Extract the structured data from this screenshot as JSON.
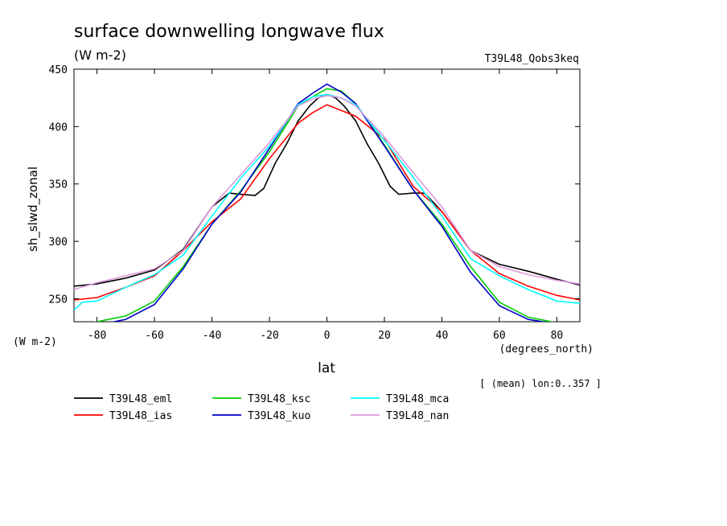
{
  "chart_data": {
    "type": "line",
    "title": "surface downwelling longwave flux",
    "units_label": "(W m-2)",
    "run_label": "T39L48_Qobs3keq",
    "ylabel": "sh_slwd_zonal",
    "y_units_label": "(W m-2)",
    "xlabel": "lat",
    "x_units_label": "(degrees_north)",
    "footnote": "[ (mean) lon:0..357 ]",
    "xlim": [
      -88,
      88
    ],
    "ylim": [
      230,
      450
    ],
    "x_ticks": [
      -80,
      -60,
      -40,
      -20,
      0,
      20,
      40,
      60,
      80
    ],
    "y_ticks": [
      250,
      300,
      350,
      400,
      450
    ],
    "grid": false,
    "legend_position": "bottom",
    "series": [
      {
        "name": "T39L48_eml",
        "color": "#000000",
        "x": [
          -88,
          -80,
          -70,
          -60,
          -50,
          -40,
          -34,
          -30,
          -25,
          -22,
          -18,
          -14,
          -10,
          -6,
          -3,
          0,
          3,
          6,
          10,
          14,
          18,
          22,
          25,
          30,
          34,
          40,
          50,
          60,
          70,
          80,
          88
        ],
        "y": [
          261,
          263,
          268,
          275,
          293,
          330,
          342,
          341,
          340,
          346,
          368,
          385,
          405,
          418,
          425,
          428,
          425,
          418,
          405,
          385,
          368,
          348,
          341,
          342,
          342,
          326,
          292,
          280,
          274,
          267,
          262
        ]
      },
      {
        "name": "T39L48_ias",
        "color": "#ff0000",
        "x": [
          -88,
          -80,
          -70,
          -60,
          -50,
          -40,
          -30,
          -20,
          -10,
          -5,
          0,
          5,
          10,
          20,
          30,
          40,
          50,
          60,
          70,
          80,
          88
        ],
        "y": [
          249,
          251,
          260,
          270,
          292,
          317,
          337,
          372,
          403,
          412,
          419,
          414,
          409,
          389,
          348,
          326,
          292,
          272,
          261,
          253,
          249
        ]
      },
      {
        "name": "T39L48_ksc",
        "color": "#00cc00",
        "x": [
          -88,
          -80,
          -70,
          -60,
          -50,
          -40,
          -30,
          -20,
          -10,
          -5,
          0,
          5,
          10,
          20,
          30,
          40,
          50,
          60,
          70,
          80,
          88
        ],
        "y": [
          227,
          230,
          235,
          248,
          278,
          315,
          344,
          378,
          418,
          426,
          433,
          431,
          420,
          384,
          345,
          315,
          278,
          247,
          234,
          229,
          227
        ]
      },
      {
        "name": "T39L48_kuo",
        "color": "#0000cc",
        "x": [
          -88,
          -80,
          -70,
          -60,
          -50,
          -40,
          -30,
          -20,
          -10,
          -5,
          0,
          5,
          10,
          20,
          30,
          40,
          50,
          60,
          70,
          80,
          88
        ],
        "y": [
          225,
          227,
          232,
          245,
          276,
          315,
          343,
          381,
          420,
          429,
          437,
          430,
          420,
          383,
          345,
          313,
          273,
          244,
          232,
          228,
          226
        ]
      },
      {
        "name": "T39L48_mca",
        "color": "#00ffff",
        "x": [
          -88,
          -85,
          -80,
          -70,
          -60,
          -50,
          -40,
          -30,
          -20,
          -10,
          -5,
          0,
          5,
          10,
          20,
          30,
          40,
          50,
          60,
          70,
          80,
          88
        ],
        "y": [
          240,
          247,
          248,
          260,
          271,
          288,
          322,
          355,
          383,
          419,
          426,
          428,
          425,
          419,
          388,
          356,
          322,
          285,
          270,
          258,
          248,
          246
        ]
      },
      {
        "name": "T39L48_nan",
        "color": "#dd99dd",
        "x": [
          -88,
          -80,
          -70,
          -60,
          -50,
          -40,
          -30,
          -20,
          -10,
          -5,
          0,
          5,
          10,
          20,
          30,
          40,
          50,
          60,
          70,
          80,
          88
        ],
        "y": [
          258,
          264,
          270,
          276,
          292,
          330,
          358,
          386,
          418,
          424,
          427,
          425,
          418,
          391,
          360,
          330,
          292,
          278,
          271,
          266,
          263
        ]
      }
    ]
  }
}
